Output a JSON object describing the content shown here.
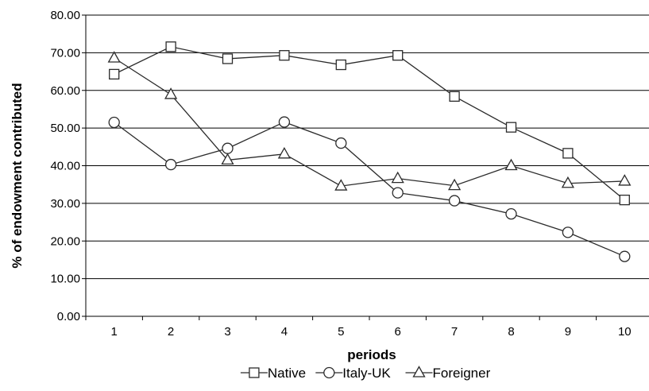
{
  "chart_data": {
    "type": "line",
    "title": "",
    "xlabel": "periods",
    "ylabel": "% of endowment contributed",
    "categories": [
      "1",
      "2",
      "3",
      "4",
      "5",
      "6",
      "7",
      "8",
      "9",
      "10"
    ],
    "ylim": [
      0,
      80
    ],
    "yticks": [
      "0.00",
      "10.00",
      "20.00",
      "30.00",
      "40.00",
      "50.00",
      "60.00",
      "70.00",
      "80.00"
    ],
    "ytick_values": [
      0,
      10,
      20,
      30,
      40,
      50,
      60,
      70,
      80
    ],
    "grid": "horizontal",
    "legend_position": "bottom",
    "series": [
      {
        "name": "Native",
        "marker": "square",
        "values": [
          64.3,
          71.6,
          68.4,
          69.3,
          66.8,
          69.3,
          58.4,
          50.2,
          43.3,
          30.9
        ]
      },
      {
        "name": "Italy-UK",
        "marker": "circle",
        "values": [
          51.5,
          40.3,
          44.6,
          51.6,
          46.0,
          32.8,
          30.7,
          27.2,
          22.3,
          15.9
        ]
      },
      {
        "name": "Foreigner",
        "marker": "triangle",
        "values": [
          68.6,
          58.9,
          41.5,
          43.1,
          34.6,
          36.6,
          34.7,
          40.0,
          35.3,
          35.9
        ]
      }
    ],
    "colors": {
      "line": "#2b2b2b",
      "grid": "#000000",
      "marker_fill": "#ffffff"
    }
  }
}
